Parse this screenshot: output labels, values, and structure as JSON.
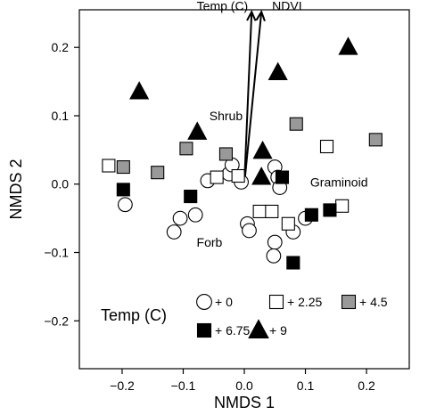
{
  "chart_data": {
    "type": "scatter",
    "xlabel": "NMDS 1",
    "ylabel": "NMDS 2",
    "xlim": [
      -0.27,
      0.27
    ],
    "ylim": [
      -0.27,
      0.255
    ],
    "xticks": [
      -0.2,
      -0.1,
      0.0,
      0.1,
      0.2
    ],
    "yticks": [
      -0.2,
      -0.1,
      0.0,
      0.1,
      0.2
    ],
    "xtick_labels": [
      "−0.2",
      "−0.1",
      "0.0",
      "0.1",
      "0.2"
    ],
    "ytick_labels": [
      "−0.2",
      "−0.1",
      "0.0",
      "0.1",
      "0.2"
    ],
    "grid": false,
    "legend": {
      "title": "Temp (C)",
      "placement": "bottom-center",
      "entries": [
        "+ 0",
        "+ 2.25",
        "+ 4.5",
        "+ 6.75",
        "+ 9"
      ]
    },
    "series": [
      {
        "name": "+ 0",
        "marker": "circle",
        "fill": "#ffffff",
        "points": [
          [
            -0.195,
            -0.03
          ],
          [
            -0.115,
            -0.07
          ],
          [
            -0.105,
            -0.05
          ],
          [
            -0.08,
            -0.045
          ],
          [
            -0.06,
            0.005
          ],
          [
            -0.025,
            0.015
          ],
          [
            -0.02,
            0.028
          ],
          [
            -0.005,
            0.003
          ],
          [
            0.005,
            -0.058
          ],
          [
            0.008,
            -0.068
          ],
          [
            0.05,
            0.025
          ],
          [
            0.055,
            0.01
          ],
          [
            0.058,
            -0.005
          ],
          [
            0.05,
            -0.085
          ],
          [
            0.048,
            -0.105
          ],
          [
            0.08,
            -0.07
          ],
          [
            0.1,
            -0.05
          ]
        ]
      },
      {
        "name": "+ 2.25",
        "marker": "square",
        "fill": "#ffffff",
        "points": [
          [
            -0.222,
            0.027
          ],
          [
            -0.045,
            0.01
          ],
          [
            -0.01,
            0.012
          ],
          [
            0.025,
            -0.04
          ],
          [
            0.045,
            -0.04
          ],
          [
            0.072,
            -0.058
          ],
          [
            0.135,
            0.055
          ],
          [
            0.16,
            -0.032
          ]
        ]
      },
      {
        "name": "+ 4.5",
        "marker": "square",
        "fill": "#999999",
        "points": [
          [
            -0.198,
            0.025
          ],
          [
            -0.142,
            0.017
          ],
          [
            -0.095,
            0.052
          ],
          [
            -0.03,
            0.044
          ],
          [
            0.085,
            0.088
          ],
          [
            0.215,
            0.065
          ]
        ]
      },
      {
        "name": "+ 6.75",
        "marker": "square",
        "fill": "#000000",
        "points": [
          [
            -0.198,
            -0.008
          ],
          [
            -0.088,
            -0.018
          ],
          [
            0.062,
            0.01
          ],
          [
            0.08,
            -0.115
          ],
          [
            0.11,
            -0.045
          ],
          [
            0.14,
            -0.038
          ]
        ]
      },
      {
        "name": "+ 9",
        "marker": "triangle",
        "fill": "#000000",
        "points": [
          [
            -0.172,
            0.135
          ],
          [
            -0.077,
            0.076
          ],
          [
            0.03,
            0.048
          ],
          [
            0.055,
            0.163
          ],
          [
            0.028,
            0.01
          ],
          [
            0.17,
            0.2
          ]
        ]
      }
    ],
    "vectors": [
      {
        "label": "Temp (C)",
        "from": [
          0,
          0
        ],
        "to": [
          0.012,
          0.252
        ]
      },
      {
        "label": "NDVI",
        "from": [
          0,
          0
        ],
        "to": [
          0.028,
          0.252
        ]
      }
    ],
    "annotations": [
      {
        "text": "Shrub",
        "x": -0.03,
        "y": 0.1
      },
      {
        "text": "Graminoid",
        "x": 0.155,
        "y": 0.003
      },
      {
        "text": "Forb",
        "x": -0.057,
        "y": -0.085
      }
    ]
  }
}
